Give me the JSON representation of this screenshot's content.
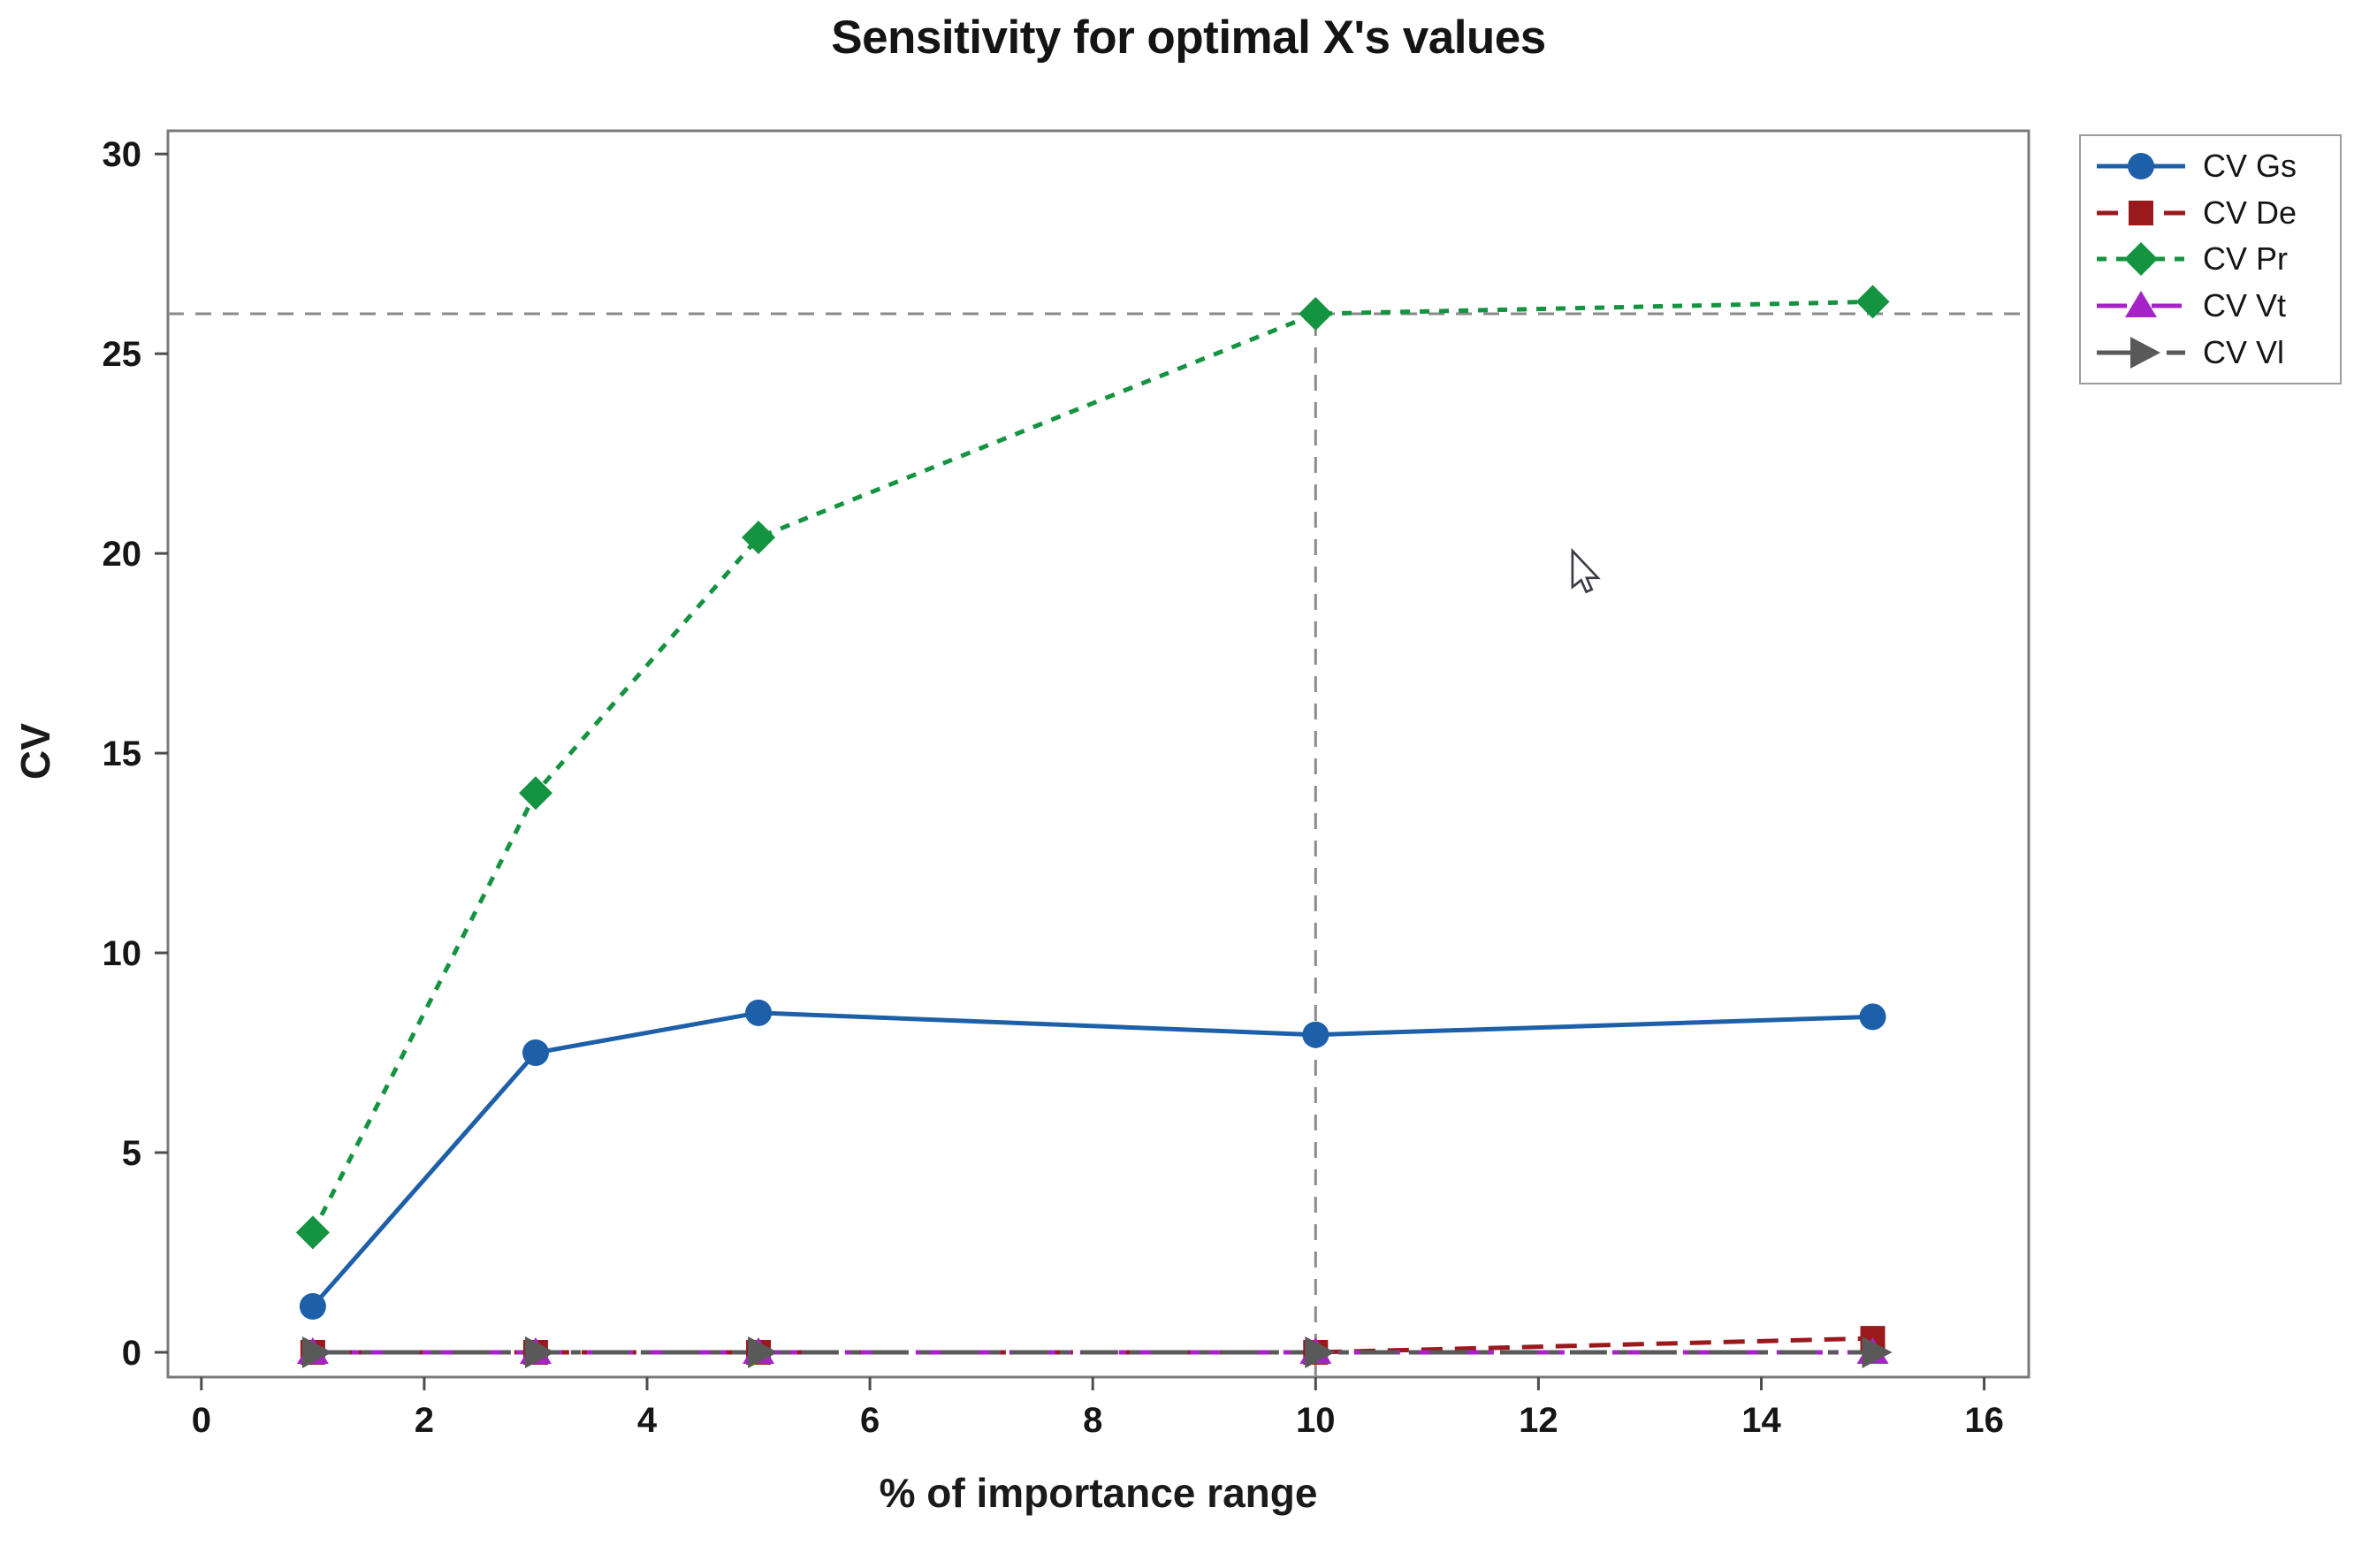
{
  "chart_data": {
    "type": "line",
    "title": "Sensitivity for optimal X's values",
    "xlabel": "% of importance range",
    "ylabel": "CV",
    "x_ticks": [
      0,
      2,
      4,
      6,
      8,
      10,
      12,
      14,
      16
    ],
    "y_ticks": [
      0,
      5,
      10,
      15,
      20,
      25,
      30
    ],
    "xlim": [
      -0.3,
      16.4
    ],
    "ylim": [
      -0.62,
      30.58
    ],
    "grid": false,
    "legend_position": "outside-top-right",
    "x": [
      1,
      3,
      5,
      10,
      15
    ],
    "series": [
      {
        "name": "CV Gs",
        "color": "#1d5fa9",
        "marker": "circle",
        "line_style": "solid",
        "values": [
          1.15,
          7.5,
          8.5,
          7.95,
          8.4
        ]
      },
      {
        "name": "CV De",
        "color": "#99191d",
        "marker": "square",
        "line_style": "dash",
        "values": [
          0,
          0,
          0,
          0,
          0.35
        ]
      },
      {
        "name": "CV Pr",
        "color": "#149340",
        "marker": "diamond",
        "line_style": "dot",
        "values": [
          3.0,
          14.0,
          20.4,
          26.0,
          26.3
        ]
      },
      {
        "name": "CV Vt",
        "color": "#a623c8",
        "marker": "triangle-up",
        "line_style": "dash-dot",
        "values": [
          0,
          0,
          0,
          0,
          0
        ]
      },
      {
        "name": "CV Vl",
        "color": "#595959",
        "marker": "triangle-right",
        "line_style": "long-dash-dot",
        "values": [
          0,
          0,
          0,
          0,
          0
        ]
      }
    ],
    "reference_lines": [
      {
        "orientation": "horizontal",
        "value": 26,
        "style": "dash",
        "color": "#8a8a8a"
      },
      {
        "orientation": "vertical",
        "value": 10,
        "style": "dash",
        "color": "#8a8a8a"
      }
    ]
  },
  "cursor": {
    "icon": "mouse-arrow-cursor"
  }
}
